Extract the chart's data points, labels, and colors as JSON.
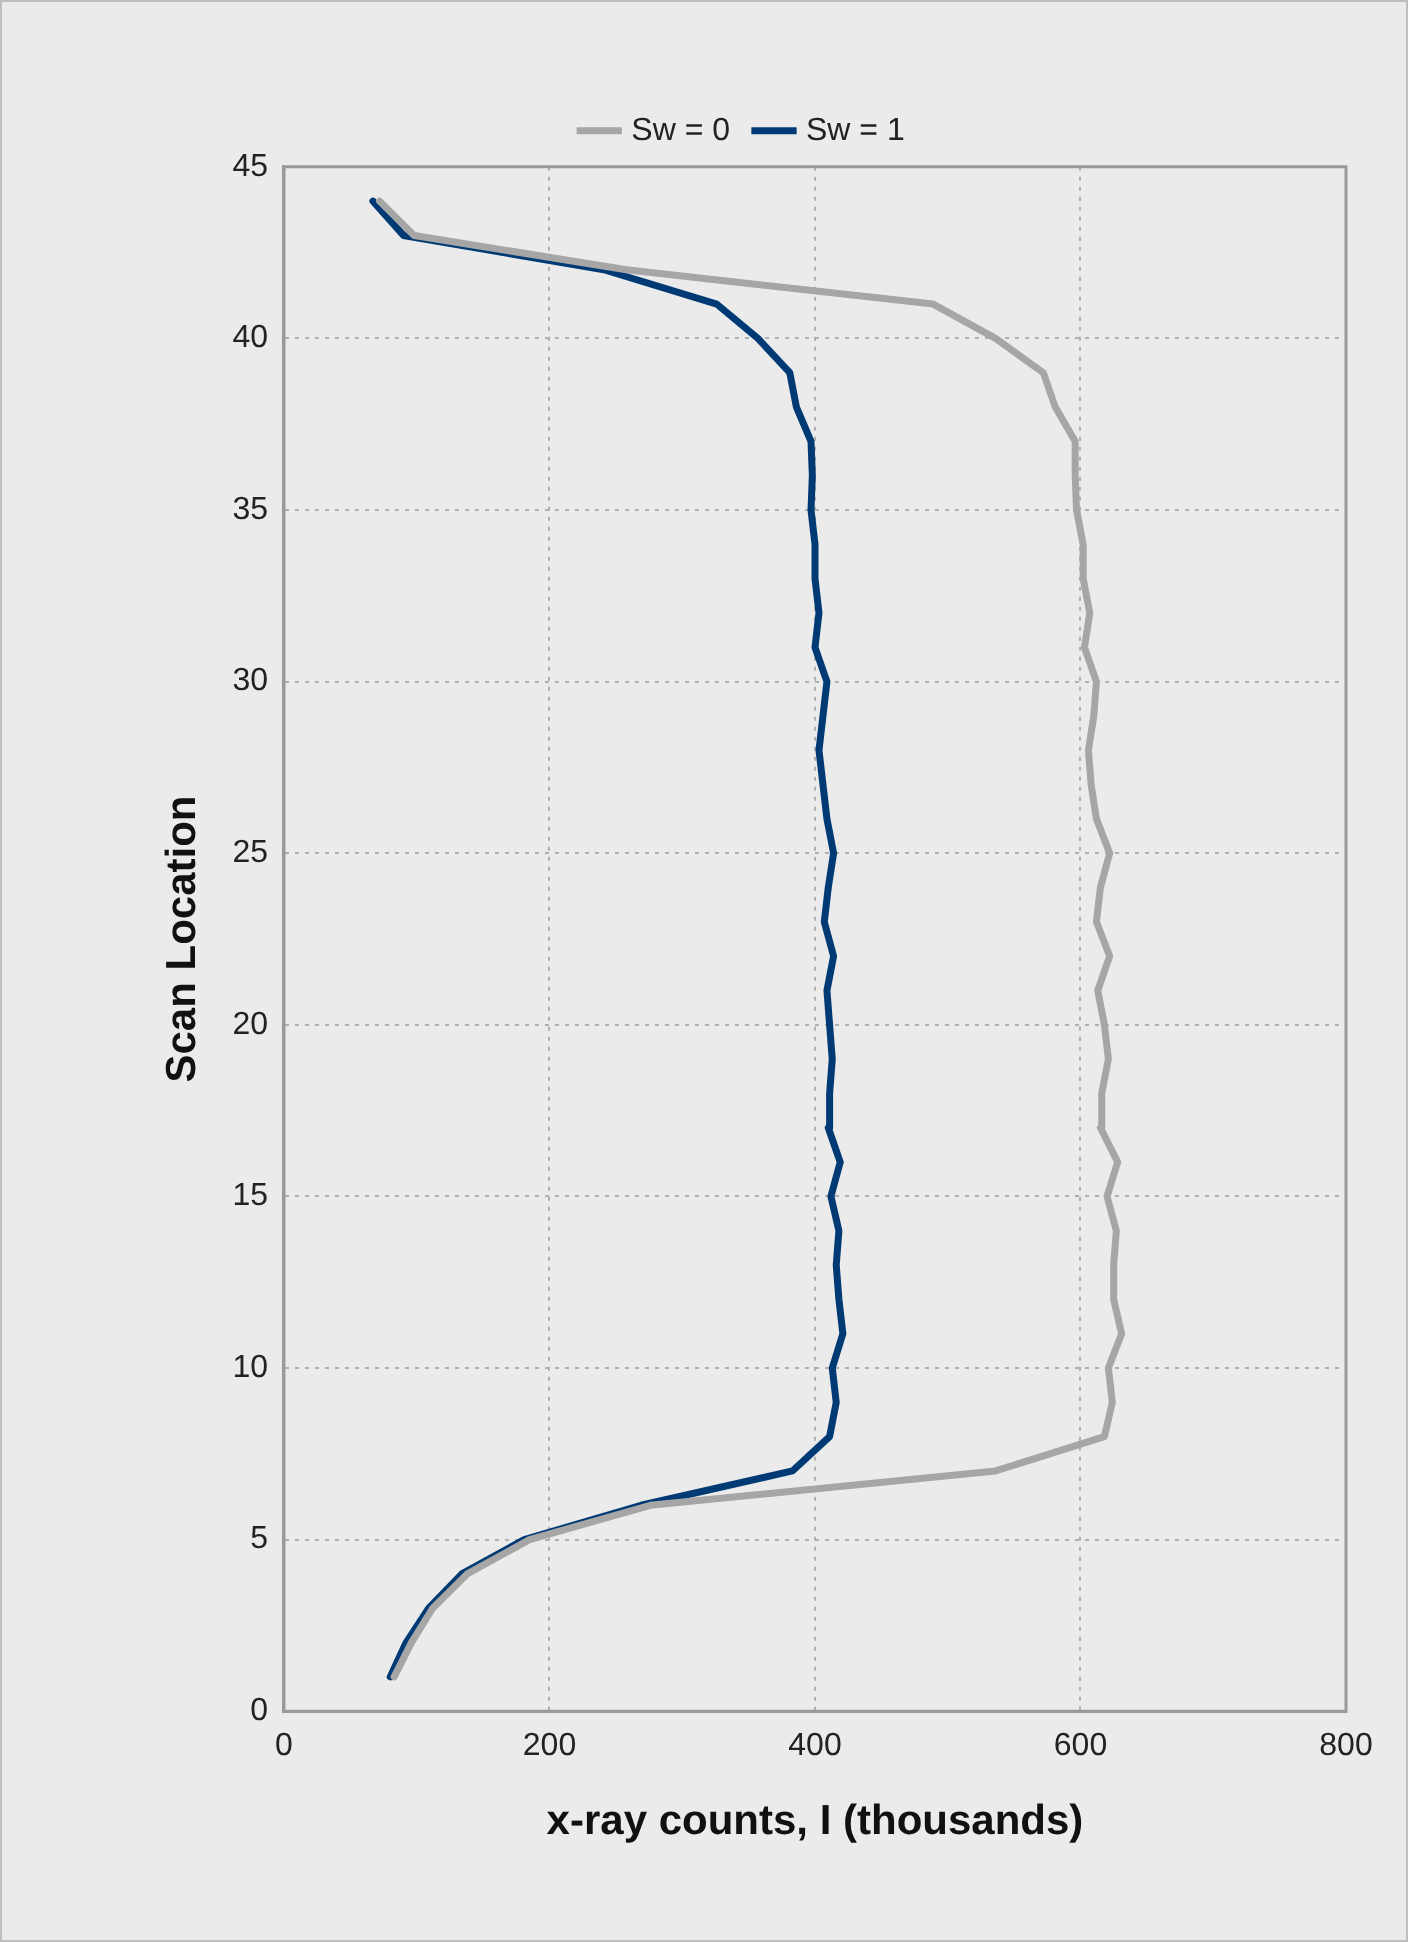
{
  "chart_data": {
    "type": "line",
    "xlabel": "x-ray counts, I (thousands)",
    "ylabel": "Scan Location",
    "xlim": [
      0,
      800
    ],
    "xticks": [
      0,
      200,
      400,
      600,
      800
    ],
    "ylim": [
      0,
      45
    ],
    "yticks": [
      0,
      5,
      10,
      15,
      20,
      25,
      30,
      35,
      40,
      45
    ],
    "grid": true,
    "legend": "top",
    "marker": "none",
    "line_style": "solid",
    "series": [
      {
        "name": "Sw = 0",
        "color": "#a6a6a6",
        "x": [
          83,
          96,
          112,
          138,
          185,
          276,
          536,
          618,
          624,
          621,
          631,
          625,
          625,
          627,
          620,
          628,
          615,
          616,
          621,
          618,
          613,
          622,
          612,
          615,
          622,
          612,
          608,
          606,
          610,
          612,
          603,
          607,
          602,
          602,
          597,
          596,
          596,
          581,
          572,
          536,
          489,
          258,
          98,
          72
        ],
        "values": [
          1,
          2,
          3,
          4,
          5,
          6,
          7,
          8,
          9,
          10,
          11,
          12,
          13,
          14,
          15,
          16,
          17,
          18,
          19,
          20,
          21,
          22,
          23,
          24,
          25,
          26,
          27,
          28,
          29,
          30,
          31,
          32,
          33,
          34,
          35,
          36,
          37,
          38,
          39,
          40,
          41,
          42,
          43,
          44
        ]
      },
      {
        "name": "Sw = 1",
        "color": "#003a75",
        "x": [
          80,
          92,
          109,
          134,
          181,
          269,
          383,
          411,
          416,
          413,
          421,
          418,
          416,
          418,
          412,
          419,
          410,
          411,
          413,
          411,
          409,
          414,
          407,
          410,
          414,
          409,
          406,
          403,
          406,
          409,
          400,
          403,
          400,
          400,
          397,
          398,
          397,
          386,
          381,
          357,
          326,
          241,
          90,
          67
        ],
        "values": [
          1,
          2,
          3,
          4,
          5,
          6,
          7,
          8,
          9,
          10,
          11,
          12,
          13,
          14,
          15,
          16,
          17,
          18,
          19,
          20,
          21,
          22,
          23,
          24,
          25,
          26,
          27,
          28,
          29,
          30,
          31,
          32,
          33,
          34,
          35,
          36,
          37,
          38,
          39,
          40,
          41,
          42,
          43,
          44
        ]
      }
    ]
  }
}
